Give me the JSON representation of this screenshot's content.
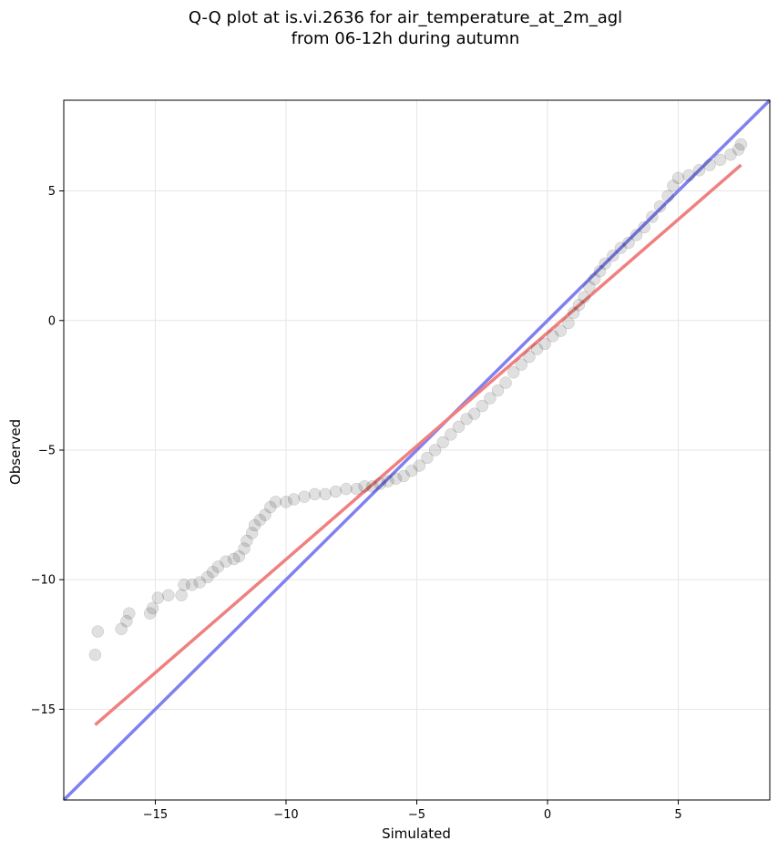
{
  "chart_data": {
    "type": "scatter",
    "title_line1": "Q-Q plot at is.vi.2636 for air_temperature_at_2m_agl",
    "title_line2": "from 06-12h during autumn",
    "xlabel": "Simulated",
    "ylabel": "Observed",
    "xlim": [
      -18.5,
      8.5
    ],
    "ylim": [
      -18.5,
      8.5
    ],
    "xticks": [
      -15,
      -10,
      -5,
      0,
      5
    ],
    "yticks": [
      -15,
      -10,
      -5,
      0,
      5
    ],
    "xtick_labels": [
      "−15",
      "−10",
      "−5",
      "0",
      "5"
    ],
    "ytick_labels": [
      "−15",
      "−10",
      "−5",
      "0",
      "5"
    ],
    "grid": true,
    "lines": [
      {
        "color": "#8080f0",
        "x": [
          -18.5,
          8.5
        ],
        "y": [
          -18.5,
          8.5
        ]
      },
      {
        "color": "#f08080",
        "x": [
          -17.3,
          7.4
        ],
        "y": [
          -15.6,
          6.0
        ]
      }
    ],
    "points": [
      [
        -17.3,
        -12.9
      ],
      [
        -17.2,
        -12.0
      ],
      [
        -16.3,
        -11.9
      ],
      [
        -16.1,
        -11.6
      ],
      [
        -16.0,
        -11.3
      ],
      [
        -15.2,
        -11.3
      ],
      [
        -15.1,
        -11.1
      ],
      [
        -14.9,
        -10.7
      ],
      [
        -14.5,
        -10.6
      ],
      [
        -14.0,
        -10.6
      ],
      [
        -13.9,
        -10.2
      ],
      [
        -13.6,
        -10.2
      ],
      [
        -13.3,
        -10.1
      ],
      [
        -13.0,
        -9.9
      ],
      [
        -12.8,
        -9.7
      ],
      [
        -12.6,
        -9.5
      ],
      [
        -12.3,
        -9.3
      ],
      [
        -12.0,
        -9.2
      ],
      [
        -11.8,
        -9.1
      ],
      [
        -11.6,
        -8.8
      ],
      [
        -11.5,
        -8.5
      ],
      [
        -11.3,
        -8.2
      ],
      [
        -11.2,
        -7.9
      ],
      [
        -11.0,
        -7.7
      ],
      [
        -10.8,
        -7.5
      ],
      [
        -10.6,
        -7.2
      ],
      [
        -10.4,
        -7.0
      ],
      [
        -10.0,
        -7.0
      ],
      [
        -9.7,
        -6.9
      ],
      [
        -9.3,
        -6.8
      ],
      [
        -8.9,
        -6.7
      ],
      [
        -8.5,
        -6.7
      ],
      [
        -8.1,
        -6.6
      ],
      [
        -7.7,
        -6.5
      ],
      [
        -7.3,
        -6.5
      ],
      [
        -7.0,
        -6.4
      ],
      [
        -6.7,
        -6.4
      ],
      [
        -6.4,
        -6.3
      ],
      [
        -6.1,
        -6.2
      ],
      [
        -5.8,
        -6.1
      ],
      [
        -5.5,
        -6.0
      ],
      [
        -5.2,
        -5.8
      ],
      [
        -4.9,
        -5.6
      ],
      [
        -4.6,
        -5.3
      ],
      [
        -4.3,
        -5.0
      ],
      [
        -4.0,
        -4.7
      ],
      [
        -3.7,
        -4.4
      ],
      [
        -3.4,
        -4.1
      ],
      [
        -3.1,
        -3.8
      ],
      [
        -2.8,
        -3.6
      ],
      [
        -2.5,
        -3.3
      ],
      [
        -2.2,
        -3.0
      ],
      [
        -1.9,
        -2.7
      ],
      [
        -1.6,
        -2.4
      ],
      [
        -1.3,
        -2.0
      ],
      [
        -1.0,
        -1.7
      ],
      [
        -0.7,
        -1.4
      ],
      [
        -0.4,
        -1.1
      ],
      [
        -0.1,
        -0.9
      ],
      [
        0.2,
        -0.6
      ],
      [
        0.5,
        -0.4
      ],
      [
        0.8,
        -0.1
      ],
      [
        1.0,
        0.3
      ],
      [
        1.2,
        0.6
      ],
      [
        1.4,
        0.9
      ],
      [
        1.6,
        1.3
      ],
      [
        1.8,
        1.6
      ],
      [
        2.0,
        1.9
      ],
      [
        2.2,
        2.2
      ],
      [
        2.5,
        2.5
      ],
      [
        2.8,
        2.8
      ],
      [
        3.1,
        3.0
      ],
      [
        3.4,
        3.3
      ],
      [
        3.7,
        3.6
      ],
      [
        4.0,
        4.0
      ],
      [
        4.3,
        4.4
      ],
      [
        4.6,
        4.8
      ],
      [
        4.8,
        5.2
      ],
      [
        5.0,
        5.5
      ],
      [
        5.4,
        5.6
      ],
      [
        5.8,
        5.8
      ],
      [
        6.2,
        6.0
      ],
      [
        6.6,
        6.2
      ],
      [
        7.0,
        6.4
      ],
      [
        7.3,
        6.6
      ],
      [
        7.4,
        6.8
      ]
    ]
  }
}
